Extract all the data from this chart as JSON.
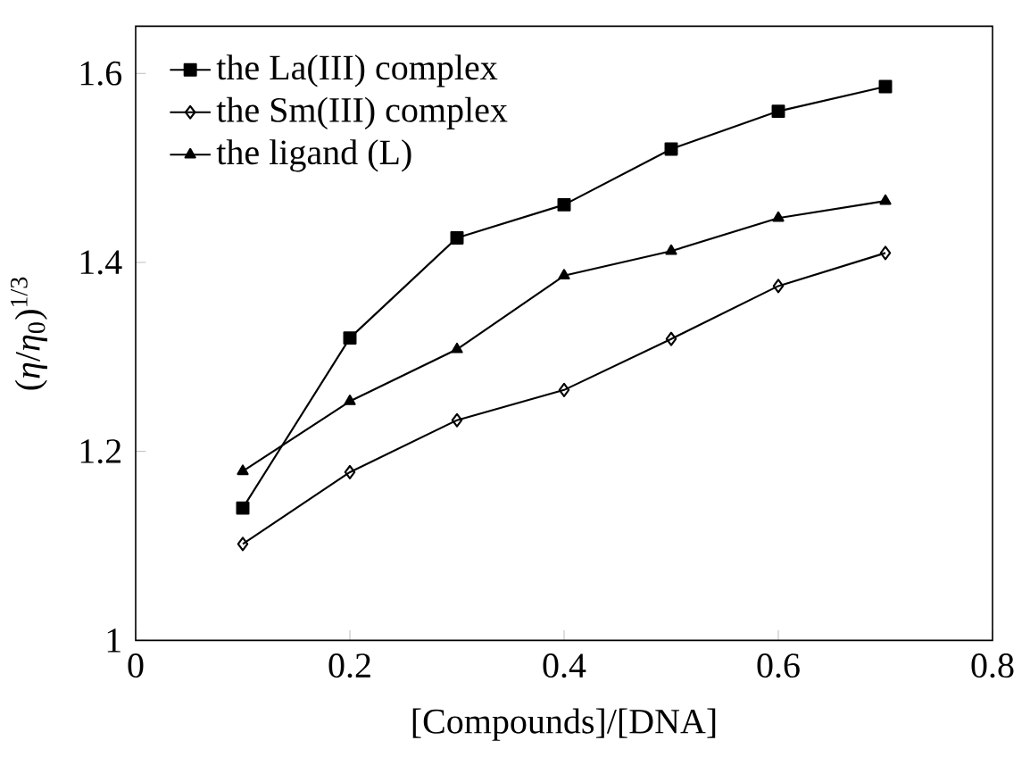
{
  "chart_data": {
    "type": "line",
    "xlabel": "[Compounds]/[DNA]",
    "ylabel": "(*η*/*η*$_{0}$)$^{1/3}$",
    "x": [
      0.1,
      0.2,
      0.3,
      0.4,
      0.5,
      0.6,
      0.7
    ],
    "series": [
      {
        "name": "the La(III) complex",
        "color": "#000000",
        "marker": "square",
        "values": [
          1.14,
          1.32,
          1.426,
          1.461,
          1.52,
          1.56,
          1.586
        ]
      },
      {
        "name": "the Sm(III) complex",
        "color": "#000000",
        "marker": "diamond",
        "values": [
          1.102,
          1.178,
          1.233,
          1.265,
          1.319,
          1.375,
          1.41
        ]
      },
      {
        "name": "the ligand (L)",
        "color": "#000000",
        "marker": "triangle",
        "values": [
          1.179,
          1.253,
          1.308,
          1.386,
          1.412,
          1.447,
          1.465
        ]
      }
    ],
    "xlim": [
      0,
      0.8
    ],
    "ylim": [
      1,
      1.65
    ],
    "xticks": [
      0,
      0.2,
      0.4,
      0.6,
      0.8
    ],
    "yticks": [
      1,
      1.2,
      1.4,
      1.6
    ],
    "grid": false,
    "legend": "top left",
    "line_style": "solid"
  }
}
